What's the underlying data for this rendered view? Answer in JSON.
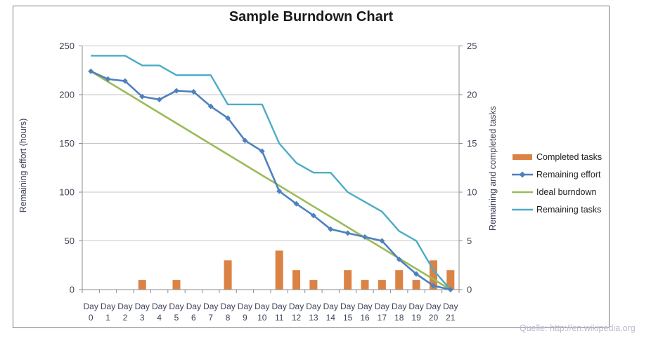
{
  "source_note": "Quelle: http://en.wikipedia.org",
  "colors": {
    "completed_tasks": "#DB8344",
    "remaining_effort": "#4F81BD",
    "ideal_burndown": "#9BBB59",
    "remaining_tasks": "#4BACC6",
    "gridline": "#C6C6C6",
    "axis": "#8C8C8C",
    "tick_text": "#3F4257",
    "title_text": "#1A1A1A",
    "legend_text": "#212121",
    "frame_border": "#7A7A7A",
    "source_text": "#B9BCCE"
  },
  "legend": {
    "items": [
      {
        "label": "Completed tasks",
        "series": "completed_tasks",
        "swatch": "bar"
      },
      {
        "label": "Remaining effort",
        "series": "remaining_effort",
        "swatch": "line-diamond"
      },
      {
        "label": "Ideal burndown",
        "series": "ideal_burndown",
        "swatch": "line"
      },
      {
        "label": "Remaining tasks",
        "series": "remaining_tasks",
        "swatch": "line"
      }
    ]
  },
  "chart_data": {
    "type": "combo bar+line, dual axis",
    "title": "Sample Burndown Chart",
    "x_label_prefix": "Day",
    "x": [
      0,
      1,
      2,
      3,
      4,
      5,
      6,
      7,
      8,
      9,
      10,
      11,
      12,
      13,
      14,
      15,
      16,
      17,
      18,
      19,
      20,
      21
    ],
    "left_axis": {
      "label": "Remaining effort (hours)",
      "ticks": [
        0,
        50,
        100,
        150,
        200,
        250
      ],
      "max": 250
    },
    "right_axis": {
      "label": "Remaining and completed tasks",
      "ticks": [
        0,
        5,
        10,
        15,
        20,
        25
      ],
      "max": 25
    },
    "grid": "horizontal only",
    "legend_position": "right",
    "series": [
      {
        "name": "Completed tasks",
        "type": "bar",
        "axis": "right",
        "color_key": "completed_tasks",
        "values": [
          0,
          0,
          0,
          1,
          0,
          1,
          0,
          0,
          3,
          0,
          0,
          4,
          2,
          1,
          0,
          2,
          1,
          1,
          2,
          1,
          3,
          2
        ]
      },
      {
        "name": "Remaining effort",
        "type": "line",
        "marker": "diamond",
        "axis": "left",
        "color_key": "remaining_effort",
        "values": [
          224,
          216,
          214,
          198,
          195,
          204,
          203,
          188,
          176,
          153,
          142,
          101,
          88,
          76,
          62,
          58,
          54,
          50,
          31,
          16,
          4,
          0
        ]
      },
      {
        "name": "Ideal burndown",
        "type": "line",
        "axis": "left",
        "color_key": "ideal_burndown",
        "values": [
          224,
          213.3,
          202.7,
          192,
          181.3,
          170.7,
          160,
          149.3,
          138.7,
          128,
          117.3,
          106.7,
          96,
          85.3,
          74.7,
          64,
          53.3,
          42.7,
          32,
          21.3,
          10.7,
          0
        ]
      },
      {
        "name": "Remaining tasks",
        "type": "line",
        "axis": "right",
        "color_key": "remaining_tasks",
        "values": [
          24,
          24,
          24,
          23,
          23,
          22,
          22,
          22,
          19,
          19,
          19,
          15,
          13,
          12,
          12,
          10,
          9,
          8,
          6,
          5,
          2,
          0
        ]
      }
    ]
  }
}
